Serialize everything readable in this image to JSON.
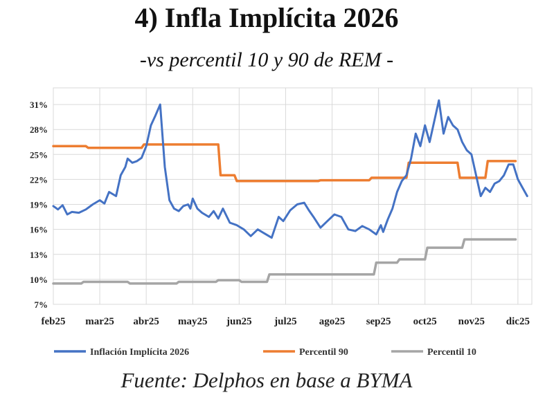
{
  "header": {
    "title": "4) Infla Implícita 2026",
    "subtitle": "-vs percentil 10 y 90 de REM -"
  },
  "footer": {
    "source": "Fuente: Delphos en base a BYMA"
  },
  "chart_data": {
    "type": "line",
    "title": "4) Infla Implícita 2026",
    "subtitle": "-vs percentil 10 y 90 de REM -",
    "xlabel": "",
    "ylabel": "",
    "ylim": [
      7,
      33
    ],
    "y_ticks": [
      7,
      10,
      13,
      16,
      19,
      22,
      25,
      28,
      31
    ],
    "y_tick_labels": [
      "7%",
      "10%",
      "13%",
      "16%",
      "19%",
      "22%",
      "25%",
      "28%",
      "31%"
    ],
    "x_ticks": [
      "feb25",
      "mar25",
      "abr25",
      "may25",
      "jun25",
      "jul25",
      "ago25",
      "sep25",
      "oct25",
      "nov25",
      "dic25"
    ],
    "x_range_months": [
      0,
      10.3
    ],
    "grid": true,
    "legend_position": "bottom",
    "series": [
      {
        "name": "Inflación Implícita 2026",
        "color": "#4472C4",
        "x": [
          0,
          0.1,
          0.2,
          0.3,
          0.4,
          0.55,
          0.7,
          0.85,
          1.0,
          1.1,
          1.2,
          1.35,
          1.45,
          1.55,
          1.6,
          1.7,
          1.8,
          1.9,
          2.0,
          2.1,
          2.2,
          2.3,
          2.4,
          2.5,
          2.6,
          2.7,
          2.8,
          2.9,
          2.95,
          3.0,
          3.1,
          3.2,
          3.35,
          3.45,
          3.55,
          3.65,
          3.8,
          3.95,
          4.1,
          4.25,
          4.4,
          4.55,
          4.7,
          4.85,
          4.95,
          5.1,
          5.25,
          5.4,
          5.5,
          5.6,
          5.75,
          5.9,
          6.05,
          6.2,
          6.35,
          6.5,
          6.65,
          6.8,
          6.95,
          7.05,
          7.1,
          7.2,
          7.3,
          7.4,
          7.5,
          7.6,
          7.7,
          7.8,
          7.9,
          8.0,
          8.1,
          8.2,
          8.3,
          8.4,
          8.5,
          8.6,
          8.7,
          8.8,
          8.9,
          9.0,
          9.1,
          9.2,
          9.3,
          9.4,
          9.5,
          9.6,
          9.7,
          9.8,
          9.9,
          10.0,
          10.1,
          10.2
        ],
        "values": [
          18.8,
          18.4,
          18.9,
          17.8,
          18.1,
          18.0,
          18.4,
          19.0,
          19.5,
          19.1,
          20.5,
          20.0,
          22.5,
          23.5,
          24.5,
          24.0,
          24.2,
          24.6,
          26.0,
          28.5,
          29.7,
          31.0,
          23.5,
          19.5,
          18.5,
          18.2,
          18.8,
          19.0,
          18.5,
          19.7,
          18.5,
          18.0,
          17.5,
          18.2,
          17.3,
          18.5,
          16.8,
          16.5,
          16.0,
          15.2,
          16.0,
          15.5,
          15.0,
          17.5,
          17.0,
          18.3,
          19.0,
          19.2,
          18.3,
          17.5,
          16.2,
          17.0,
          17.8,
          17.5,
          16.0,
          15.8,
          16.4,
          16.0,
          15.4,
          16.5,
          15.7,
          17.2,
          18.5,
          20.5,
          21.8,
          22.5,
          24.5,
          27.5,
          26.0,
          28.5,
          26.5,
          29.0,
          31.5,
          27.5,
          29.5,
          28.5,
          28.0,
          26.5,
          25.5,
          25.0,
          22.5,
          20.0,
          21.0,
          20.5,
          21.5,
          21.8,
          22.5,
          23.8,
          23.8,
          22.0,
          21.0,
          20.0
        ]
      },
      {
        "name": "Percentil 90",
        "color": "#ED7D31",
        "x": [
          0,
          0.7,
          0.75,
          1.9,
          1.95,
          2.6,
          2.65,
          3.55,
          3.6,
          3.9,
          3.95,
          5.7,
          5.75,
          6.8,
          6.85,
          7.6,
          7.65,
          8.0,
          8.05,
          8.7,
          8.75,
          9.3,
          9.35,
          9.95
        ],
        "values": [
          26.0,
          26.0,
          25.8,
          25.8,
          26.2,
          26.2,
          26.2,
          26.2,
          22.5,
          22.5,
          21.8,
          21.8,
          21.9,
          21.9,
          22.2,
          22.2,
          24.0,
          24.0,
          24.0,
          24.0,
          22.2,
          22.2,
          24.2,
          24.2
        ]
      },
      {
        "name": "Percentil 10",
        "color": "#A5A5A5",
        "x": [
          0,
          0.6,
          0.65,
          1.6,
          1.65,
          2.65,
          2.7,
          3.5,
          3.55,
          4.0,
          4.05,
          4.6,
          4.65,
          6.9,
          6.95,
          7.4,
          7.45,
          8.0,
          8.05,
          8.8,
          8.85,
          9.95
        ],
        "values": [
          9.5,
          9.5,
          9.7,
          9.7,
          9.5,
          9.5,
          9.7,
          9.7,
          9.9,
          9.9,
          9.7,
          9.7,
          10.6,
          10.6,
          12.0,
          12.0,
          12.4,
          12.4,
          13.8,
          13.8,
          14.8,
          14.8
        ]
      }
    ]
  }
}
